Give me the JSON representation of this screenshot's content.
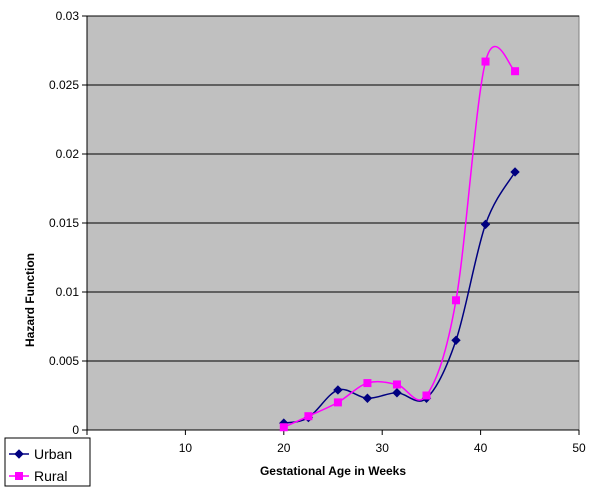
{
  "chart_data": {
    "type": "line",
    "xlabel": "Gestational Age in Weeks",
    "ylabel": "Hazard Function",
    "xlim": [
      0,
      50
    ],
    "ylim": [
      0,
      0.03
    ],
    "x_ticks": [
      "0",
      "10",
      "20",
      "30",
      "40",
      "50"
    ],
    "y_ticks": [
      "0",
      "0.005",
      "0.01",
      "0.015",
      "0.02",
      "0.025",
      "0.03"
    ],
    "grid": true,
    "legend_position": "bottom-left",
    "plot_background": "#c0c0c0",
    "series": [
      {
        "name": "Urban",
        "color": "#000080",
        "marker": "diamond",
        "x": [
          20,
          22.5,
          25.5,
          28.5,
          31.5,
          34.5,
          37.5,
          40.5,
          43.5
        ],
        "y": [
          0.0005,
          0.0009,
          0.0029,
          0.0023,
          0.0027,
          0.0023,
          0.0065,
          0.0149,
          0.0187
        ]
      },
      {
        "name": "Rural",
        "color": "#ff00ff",
        "marker": "square",
        "x": [
          20,
          22.5,
          25.5,
          28.5,
          31.5,
          34.5,
          37.5,
          40.5,
          43.5
        ],
        "y": [
          0.0002,
          0.001,
          0.002,
          0.0034,
          0.0033,
          0.0025,
          0.0094,
          0.0267,
          0.026
        ]
      }
    ]
  }
}
